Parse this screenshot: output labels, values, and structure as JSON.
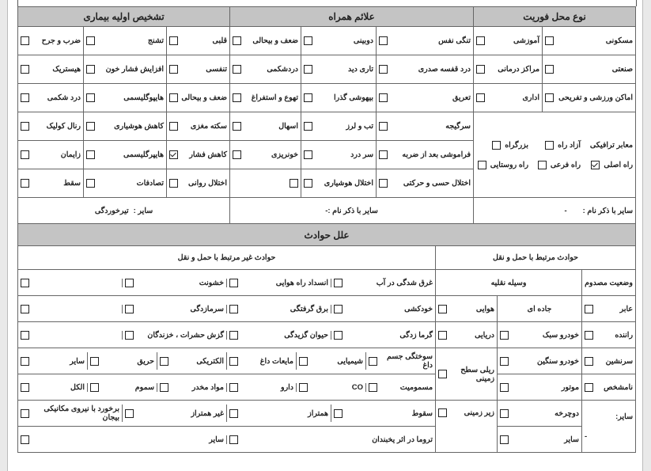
{
  "location": {
    "title": "نوع محل فوریت",
    "items": [
      "مسکونی",
      "آموزشی",
      "صنعتی",
      "مراکز درمانی",
      "اماکن ورزشی و تفریحی",
      "اداری"
    ],
    "traffic_label": "معابر ترافیکی",
    "traffic_options": [
      "آزاد راه",
      "بزرگراه",
      "راه اصلی",
      "راه فرعی",
      "راه روستایی"
    ],
    "checked_option": "راه اصلی",
    "other_label": "سایر با ذکر نام :",
    "other_value": "-"
  },
  "symptoms": {
    "title": "علائم همراه",
    "col1": [
      "تنگی نفس",
      "درد قفسه صدری",
      "تعریق",
      "سرگیجه",
      "فراموشی بعد از ضربه",
      "اختلال حسی و حرکتی"
    ],
    "col2": [
      "دوبینی",
      "تاری دید",
      "بیهوشی گذرا",
      "تب و لرز",
      "سر درد",
      "اختلال هوشیاری"
    ],
    "col3": [
      "ضعف و بیحالی",
      "دردشکمی",
      "تهوع و استفراغ",
      "اسهال",
      "خونریزی"
    ],
    "other_label": "سایر با ذکر نام :-"
  },
  "diagnosis": {
    "title": "تشخیص اولیه بیماری",
    "col1": [
      "قلبی",
      "تنفسی",
      "ضعف و بیحالی",
      "سکته مغزی",
      "کاهش فشار",
      "اختلال روانی"
    ],
    "col2": [
      "تشنج",
      "افزایش فشار خون",
      "هایپوگلیسمی",
      "کاهش هوشیاری",
      "هایپرگلیسمی",
      "تصادفات"
    ],
    "col3": [
      "ضرب و جرح",
      "هیستریک",
      "درد شکمی",
      "رنال کولیک",
      "زایمان",
      "سقط"
    ],
    "checked_item": "کاهش فشار",
    "other_label": "سایر :",
    "other_value": "تیرخوردگی"
  },
  "accidents": {
    "title": "علل حوادث",
    "transport_title": "حوادث مرتبط با حمل و نقل",
    "non_transport_title": "حوادث غیر مرتبط با حمل و نقل",
    "victim_status_title": "وضعیت مصدوم",
    "victim_status": [
      "عابر",
      "راننده",
      "سرنشین",
      "نامشخص"
    ],
    "victim_other_label": "سایر:",
    "victim_other_value": "-",
    "vehicle_title": "وسیله نقلیه",
    "road_title": "جاده ای",
    "road_vehicles": [
      "خودرو سبک",
      "خودرو سنگین",
      "موتور",
      "دوچرخه",
      "سایر"
    ],
    "other_vehicles": [
      "هوایی",
      "دریایی",
      "ریلی سطح زمینی",
      "زیر زمینی"
    ],
    "non_transport_rows": [
      [
        "غرق شدگی در آب",
        "انسداد راه هوایی",
        "خشونت",
        ""
      ],
      [
        "خودکشی",
        "برق گرفتگی",
        "سرمازدگی",
        ""
      ],
      [
        "گرما زدگی",
        "حیوان گزیدگی",
        "گزش حشرات ، خزندگان",
        ""
      ],
      [
        "سوختگی جسم داغ",
        "شیمیایی",
        "مایعات داغ",
        "الکتریکی",
        "حریق",
        "سایر"
      ],
      [
        "مسمومیت",
        "CO",
        "دارو",
        "مواد مخدر",
        "سموم",
        "الکل"
      ],
      [
        "سقوط",
        "همتراز",
        "غیر همتراز",
        "برخورد با نیروی مکانیکی بیجان"
      ],
      [
        "تروما در اثر یخبندان",
        "سایر"
      ]
    ]
  },
  "colors": {
    "header_bg": "#c4c4c4",
    "border": "#666666"
  }
}
